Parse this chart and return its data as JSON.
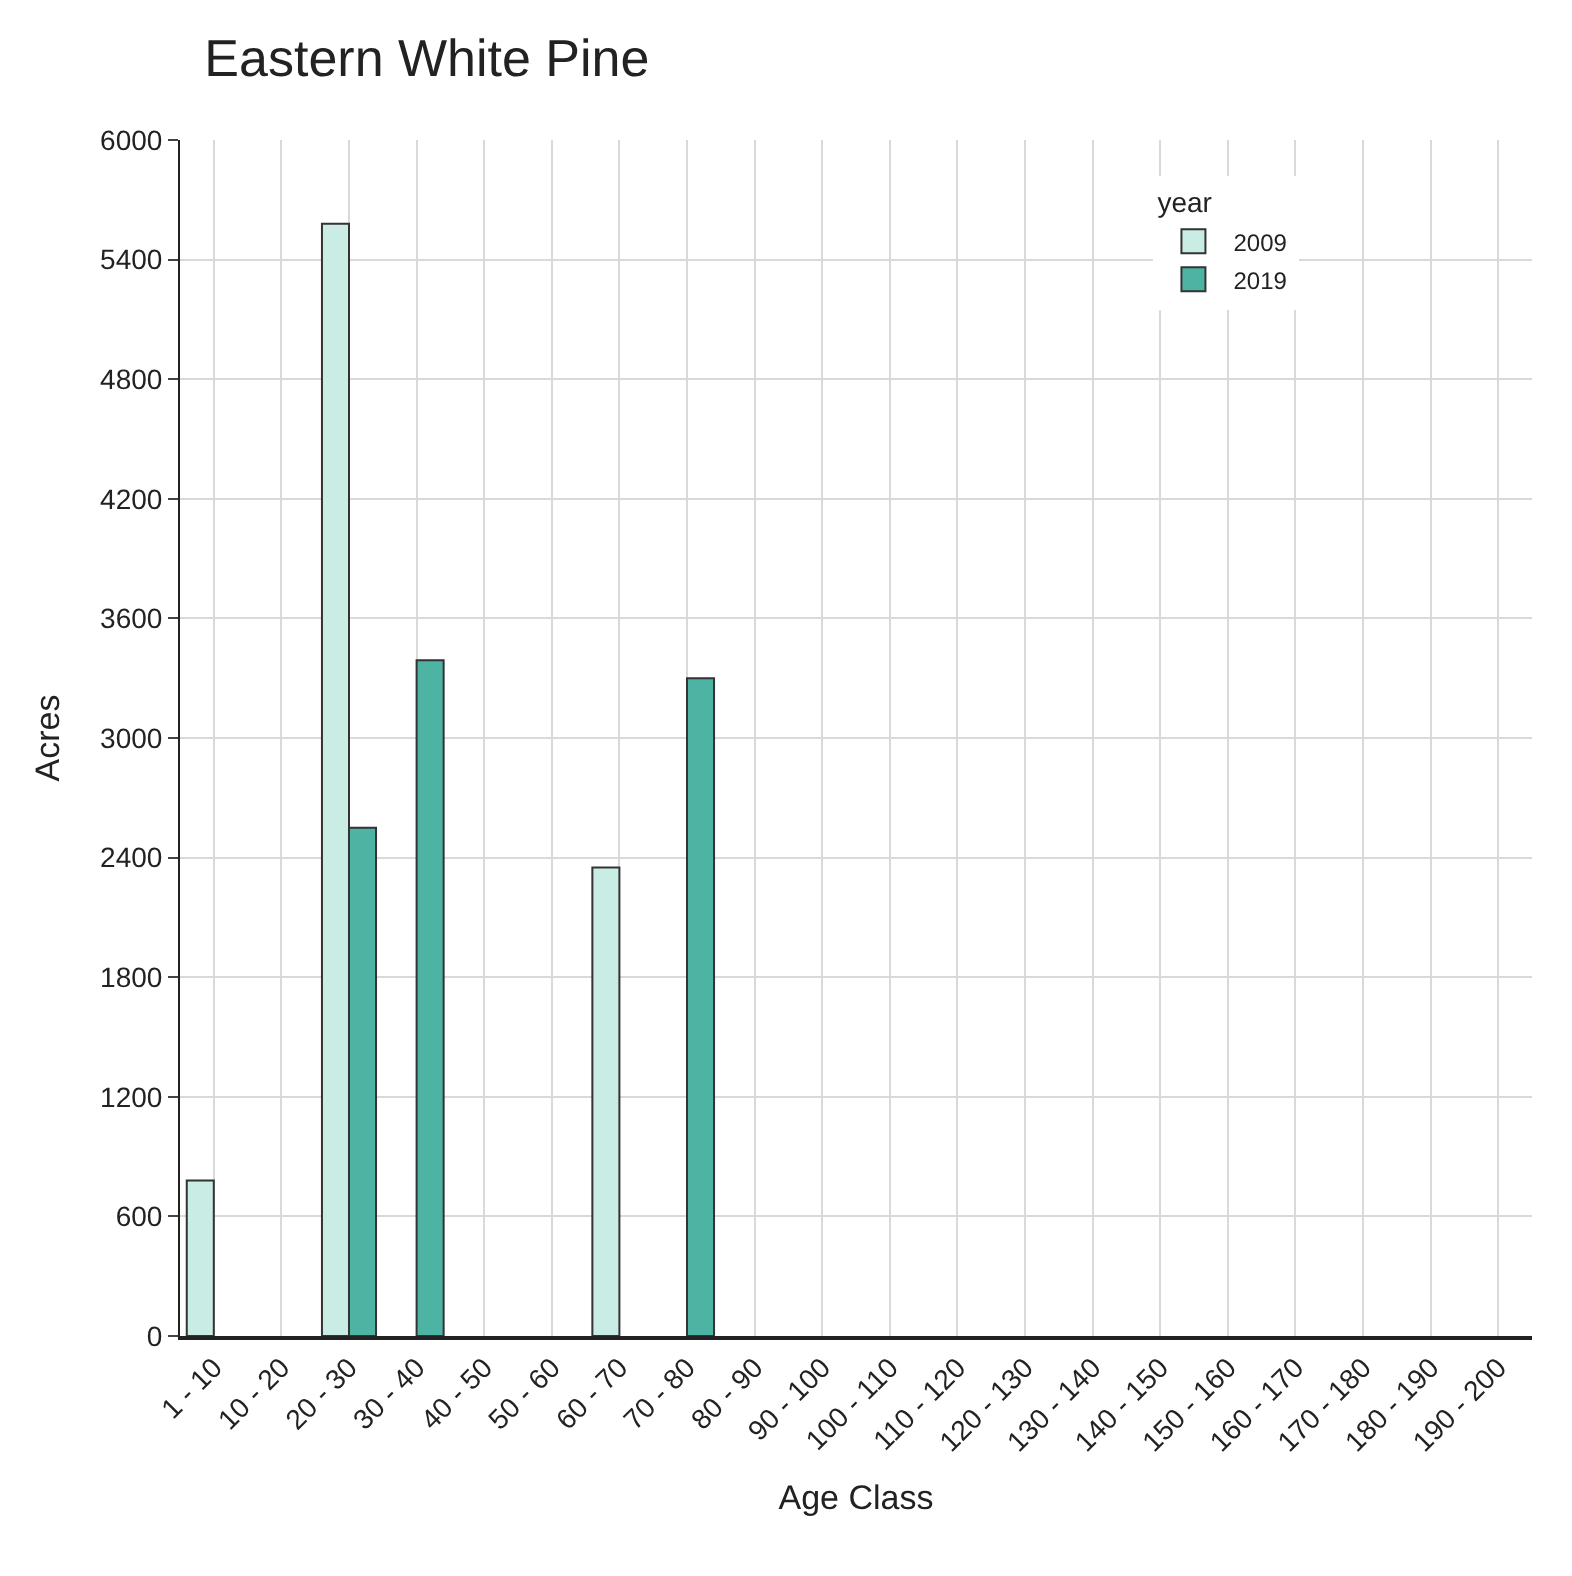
{
  "chart_data": {
    "type": "bar",
    "title": "Eastern White Pine",
    "xlabel": "Age Class",
    "ylabel": "Acres",
    "legend_title": "year",
    "categories": [
      "1 - 10",
      "10 - 20",
      "20 - 30",
      "30 - 40",
      "40 - 50",
      "50 - 60",
      "60 - 70",
      "70 - 80",
      "80 - 90",
      "90 - 100",
      "100 - 110",
      "110 - 120",
      "120 - 130",
      "130 - 140",
      "140 - 150",
      "150 - 160",
      "160 - 170",
      "170 - 180",
      "180 - 190",
      "190 - 200"
    ],
    "series": [
      {
        "name": "2009",
        "color": "#c9ece5",
        "values": [
          780,
          null,
          5580,
          null,
          null,
          null,
          2350,
          null,
          null,
          null,
          null,
          null,
          null,
          null,
          null,
          null,
          null,
          null,
          null,
          null
        ]
      },
      {
        "name": "2019",
        "color": "#4db3a2",
        "values": [
          null,
          null,
          2550,
          3390,
          null,
          null,
          null,
          3300,
          null,
          null,
          null,
          null,
          null,
          null,
          null,
          null,
          null,
          null,
          null,
          null
        ]
      }
    ],
    "ylim": [
      0,
      6000
    ],
    "yticks": [
      0,
      600,
      1200,
      1800,
      2400,
      3000,
      3600,
      4200,
      4800,
      5400,
      6000
    ],
    "grid": true,
    "legend": "top right"
  }
}
